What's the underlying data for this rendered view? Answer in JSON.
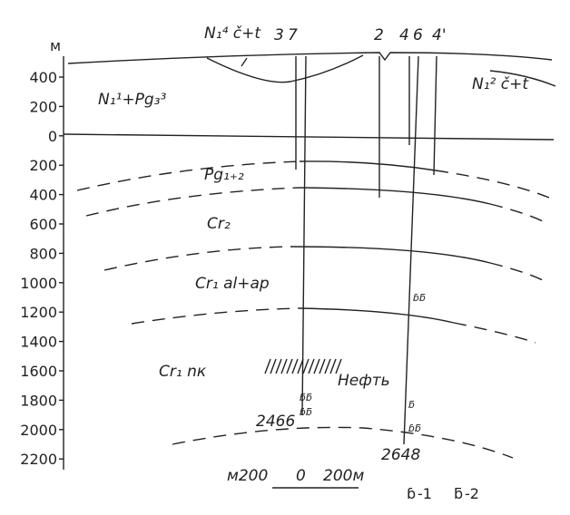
{
  "axis": {
    "unit": "м",
    "ticks": [
      "400",
      "200",
      "0",
      "200",
      "400",
      "600",
      "800",
      "1000",
      "1200",
      "1400",
      "1600",
      "1800",
      "2000",
      "2200"
    ]
  },
  "layers": [
    "N₁⁴ č+t",
    "N₁¹+Pg₃³",
    "N₁² č+t",
    "Pg₁₊₂",
    "Cr₂",
    "Cr₁ al+ap",
    "Cr₁ nк"
  ],
  "oil": "Нефть",
  "wells": [
    "3",
    "7",
    "2",
    "4",
    "6",
    "4'"
  ],
  "depths": [
    "2466",
    "2648"
  ],
  "scale": [
    "м200",
    "0",
    "200м"
  ],
  "legend": [
    "-1",
    "-2"
  ]
}
